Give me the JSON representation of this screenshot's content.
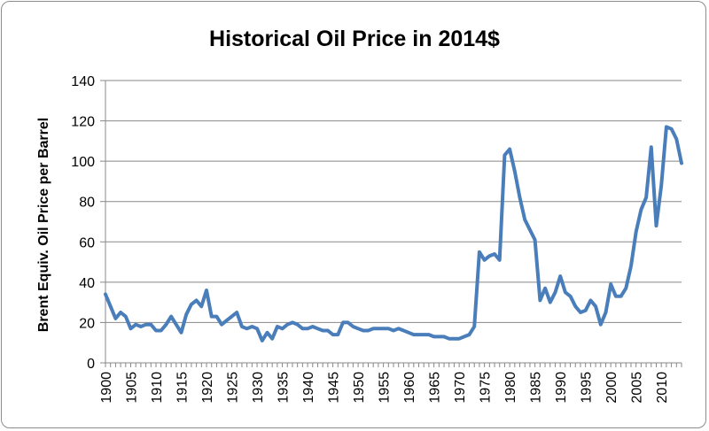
{
  "chart_data": {
    "type": "line",
    "title": "Historical Oil Price in 2014$",
    "xlabel": "",
    "ylabel": "Brent Equiv. Oil Price per Barrel",
    "xlim": [
      1900,
      2014
    ],
    "ylim": [
      0,
      140
    ],
    "y_ticks": [
      "0",
      "20",
      "40",
      "60",
      "80",
      "100",
      "120",
      "140"
    ],
    "x_ticks": [
      "1900",
      "1905",
      "1910",
      "1915",
      "1920",
      "1925",
      "1930",
      "1935",
      "1940",
      "1945",
      "1950",
      "1955",
      "1960",
      "1965",
      "1970",
      "1975",
      "1980",
      "1985",
      "1990",
      "1995",
      "2000",
      "2005",
      "2010"
    ],
    "grid": "horizontal",
    "legend": "none",
    "line_color": "#4a7ebb",
    "series": [
      {
        "x": [
          1900,
          1901,
          1902,
          1903,
          1904,
          1905,
          1906,
          1907,
          1908,
          1909,
          1910,
          1911,
          1912,
          1913,
          1914,
          1915,
          1916,
          1917,
          1918,
          1919,
          1920,
          1921,
          1922,
          1923,
          1924,
          1925,
          1926,
          1927,
          1928,
          1929,
          1930,
          1931,
          1932,
          1933,
          1934,
          1935,
          1936,
          1937,
          1938,
          1939,
          1940,
          1941,
          1942,
          1943,
          1944,
          1945,
          1946,
          1947,
          1948,
          1949,
          1950,
          1951,
          1952,
          1953,
          1954,
          1955,
          1956,
          1957,
          1958,
          1959,
          1960,
          1961,
          1962,
          1963,
          1964,
          1965,
          1966,
          1967,
          1968,
          1969,
          1970,
          1971,
          1972,
          1973,
          1974,
          1975,
          1976,
          1977,
          1978,
          1979,
          1980,
          1981,
          1982,
          1983,
          1984,
          1985,
          1986,
          1987,
          1988,
          1989,
          1990,
          1991,
          1992,
          1993,
          1994,
          1995,
          1996,
          1997,
          1998,
          1999,
          2000,
          2001,
          2002,
          2003,
          2004,
          2005,
          2006,
          2007,
          2008,
          2009,
          2010,
          2011,
          2012,
          2013,
          2014
        ],
        "values": [
          34,
          28,
          22,
          25,
          23,
          17,
          19,
          18,
          19,
          19,
          16,
          16,
          19,
          23,
          19,
          15,
          24,
          29,
          31,
          28,
          36,
          23,
          23,
          19,
          21,
          23,
          25,
          18,
          17,
          18,
          17,
          11,
          15,
          12,
          18,
          17,
          19,
          20,
          19,
          17,
          17,
          18,
          17,
          16,
          16,
          14,
          14,
          20,
          20,
          18,
          17,
          16,
          16,
          17,
          17,
          17,
          17,
          16,
          17,
          16,
          15,
          14,
          14,
          14,
          14,
          13,
          13,
          13,
          12,
          12,
          12,
          13,
          14,
          18,
          55,
          51,
          53,
          54,
          51,
          103,
          106,
          95,
          82,
          71,
          66,
          61,
          31,
          37,
          30,
          35,
          43,
          35,
          33,
          28,
          25,
          26,
          31,
          28,
          19,
          25,
          39,
          33,
          33,
          37,
          48,
          65,
          76,
          82,
          107,
          68,
          88,
          117,
          116,
          111,
          99
        ]
      }
    ]
  }
}
